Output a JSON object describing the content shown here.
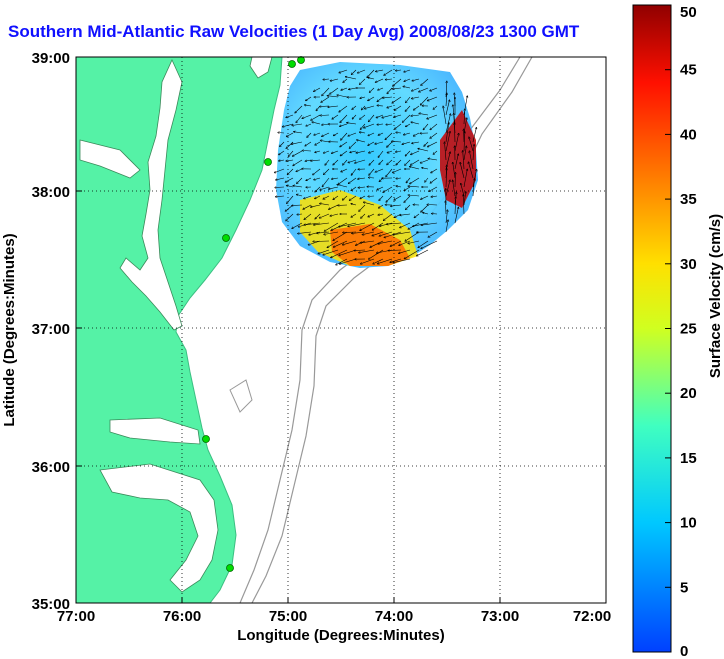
{
  "title": "Southern Mid-Atlantic Raw Velocities (1 Day Avg) 2008/08/23 1300 GMT",
  "map": {
    "xlabel": "Longitude (Degrees:Minutes)",
    "ylabel": "Latitude (Degrees:Minutes)",
    "lon_ticks": [
      "77:00",
      "76:00",
      "75:00",
      "74:00",
      "73:00",
      "72:00"
    ],
    "lat_ticks": [
      "39:00",
      "38:00",
      "37:00",
      "36:00",
      "35:00"
    ],
    "grid": "dotted",
    "land_color": "#55f2a6",
    "station_color": "#00dd00"
  },
  "colorbar": {
    "label": "Surface Velocity (cm/s)",
    "ticks": [
      "50",
      "45",
      "40",
      "35",
      "30",
      "25",
      "20",
      "15",
      "10",
      "5",
      "0"
    ],
    "range": [
      0,
      50
    ]
  }
}
